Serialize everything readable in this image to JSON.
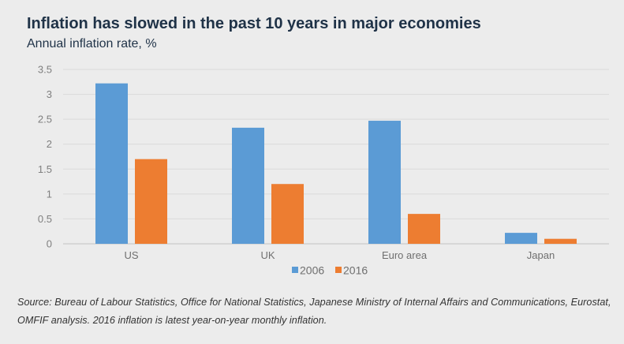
{
  "header": {
    "title": "Inflation has slowed in the past 10 years in major economies",
    "subtitle": "Annual inflation rate, %"
  },
  "footer": {
    "source": "Source: Bureau of Labour Statistics, Office for National Statistics, Japanese Ministry of Internal Affairs and Communications, Eurostat, OMFIF analysis. 2016 inflation is latest year-on-year monthly inflation."
  },
  "chart_data": {
    "type": "bar",
    "title": "Inflation has slowed in the past 10 years in major economies",
    "subtitle": "Annual inflation rate, %",
    "xlabel": "",
    "ylabel": "",
    "categories": [
      "US",
      "UK",
      "Euro area",
      "Japan"
    ],
    "series": [
      {
        "name": "2006",
        "color": "#5b9bd5",
        "values": [
          3.22,
          2.33,
          2.47,
          0.22
        ]
      },
      {
        "name": "2016",
        "color": "#ed7d31",
        "values": [
          1.7,
          1.2,
          0.6,
          0.1
        ]
      }
    ],
    "ylim": [
      0,
      3.5
    ],
    "yticks": [
      0,
      0.5,
      1,
      1.5,
      2,
      2.5,
      3,
      3.5
    ],
    "ytick_labels": [
      "0",
      "0.5",
      "1",
      "1.5",
      "2",
      "2.5",
      "3",
      "3.5"
    ],
    "grid": true,
    "legend": "bottom-center"
  }
}
